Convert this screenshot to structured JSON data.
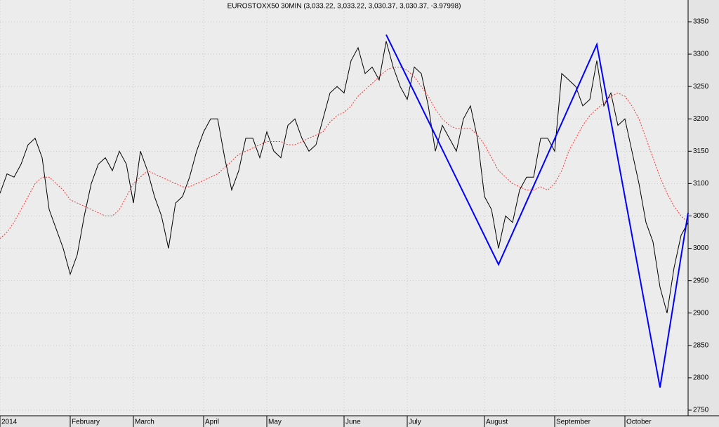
{
  "chart_data": {
    "type": "line",
    "title": "EUROSTOXX50 30MIN (3,033.22, 3,033.22, 3,030.37, 3,030.37, -3.97998)",
    "categories": [
      "2014",
      null,
      null,
      null,
      null,
      null,
      null,
      null,
      null,
      null,
      "February",
      null,
      null,
      null,
      null,
      null,
      null,
      null,
      null,
      "March",
      null,
      null,
      null,
      null,
      null,
      null,
      null,
      null,
      null,
      "April",
      null,
      null,
      null,
      null,
      null,
      null,
      null,
      null,
      "May",
      null,
      null,
      null,
      null,
      null,
      null,
      null,
      null,
      null,
      null,
      "June",
      null,
      null,
      null,
      null,
      null,
      null,
      null,
      null,
      "July",
      null,
      null,
      null,
      null,
      null,
      null,
      null,
      null,
      null,
      null,
      "August",
      null,
      null,
      null,
      null,
      null,
      null,
      null,
      null,
      null,
      "September",
      null,
      null,
      null,
      null,
      null,
      null,
      null,
      null,
      null,
      "October",
      null,
      null,
      null,
      null,
      null,
      null,
      null,
      null,
      null
    ],
    "series": [
      {
        "color": "#000000",
        "values": [
          3085,
          3115,
          3110,
          3130,
          3160,
          3170,
          3140,
          3060,
          3030,
          3000,
          2960,
          2990,
          3050,
          3100,
          3130,
          3140,
          3120,
          3150,
          3130,
          3070,
          3150,
          3120,
          3080,
          3050,
          3000,
          3070,
          3080,
          3110,
          3150,
          3180,
          3200,
          3200,
          3140,
          3090,
          3120,
          3170,
          3170,
          3140,
          3180,
          3150,
          3140,
          3190,
          3200,
          3170,
          3150,
          3160,
          3200,
          3240,
          3250,
          3240,
          3290,
          3310,
          3270,
          3280,
          3260,
          3320,
          3280,
          3250,
          3230,
          3280,
          3270,
          3220,
          3150,
          3190,
          3170,
          3150,
          3200,
          3220,
          3170,
          3080,
          3060,
          3000,
          3050,
          3040,
          3090,
          3110,
          3110,
          3170,
          3170,
          3150,
          3270,
          3260,
          3250,
          3220,
          3230,
          3290,
          3220,
          3240,
          3190,
          3200,
          3150,
          3100,
          3040,
          3010,
          2940,
          2900,
          2970,
          3020,
          3040
        ]
      },
      {
        "color": "#ff3030",
        "dashed": true,
        "values": [
          3015,
          3025,
          3040,
          3060,
          3080,
          3100,
          3110,
          3110,
          3100,
          3090,
          3075,
          3070,
          3065,
          3060,
          3055,
          3050,
          3050,
          3060,
          3080,
          3100,
          3110,
          3120,
          3115,
          3110,
          3105,
          3100,
          3095,
          3095,
          3100,
          3105,
          3110,
          3115,
          3125,
          3135,
          3145,
          3150,
          3155,
          3160,
          3165,
          3165,
          3165,
          3160,
          3160,
          3165,
          3170,
          3175,
          3180,
          3195,
          3205,
          3210,
          3220,
          3235,
          3245,
          3255,
          3265,
          3275,
          3280,
          3280,
          3275,
          3265,
          3250,
          3235,
          3215,
          3200,
          3190,
          3185,
          3185,
          3185,
          3175,
          3160,
          3140,
          3120,
          3110,
          3100,
          3095,
          3090,
          3090,
          3095,
          3090,
          3100,
          3120,
          3150,
          3170,
          3190,
          3205,
          3215,
          3225,
          3235,
          3240,
          3235,
          3220,
          3200,
          3170,
          3140,
          3110,
          3085,
          3065,
          3050,
          3040
        ]
      },
      {
        "color": "#0000ff",
        "connect_gaps": true,
        "values": [
          null,
          null,
          null,
          null,
          null,
          null,
          null,
          null,
          null,
          null,
          null,
          null,
          null,
          null,
          null,
          null,
          null,
          null,
          null,
          null,
          null,
          null,
          null,
          null,
          null,
          null,
          null,
          null,
          null,
          null,
          null,
          null,
          null,
          null,
          null,
          null,
          null,
          null,
          null,
          null,
          null,
          null,
          null,
          null,
          null,
          null,
          null,
          null,
          null,
          null,
          null,
          null,
          null,
          null,
          null,
          3330,
          null,
          null,
          null,
          null,
          null,
          null,
          null,
          null,
          null,
          null,
          null,
          null,
          null,
          null,
          null,
          2975,
          null,
          null,
          null,
          null,
          null,
          null,
          null,
          null,
          null,
          null,
          null,
          null,
          null,
          3315,
          null,
          null,
          null,
          null,
          null,
          null,
          null,
          null,
          2785,
          null,
          null,
          null,
          3055
        ]
      }
    ],
    "ylim": [
      2750,
      3350
    ],
    "yticks": [
      2750,
      2800,
      2850,
      2900,
      2950,
      3000,
      3050,
      3100,
      3150,
      3200,
      3250,
      3300,
      3350
    ],
    "grid": true
  }
}
